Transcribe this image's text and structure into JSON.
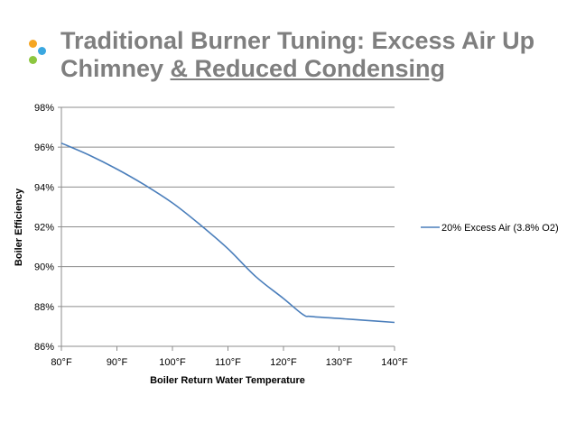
{
  "slide": {
    "title_line1": "Traditional Burner Tuning: Excess Air Up",
    "title_line2_plain": "Chimney ",
    "title_line2_underlined": "& Reduced Condensing",
    "title_color": "#7f7f7f",
    "logo_colors": {
      "orange": "#f5a623",
      "blue": "#3aa7e0",
      "green": "#8cc63f"
    }
  },
  "chart_data": {
    "type": "line",
    "title": "",
    "xlabel": "Boiler Return Water Temperature",
    "ylabel": "Boiler Efficiency",
    "xlim": [
      80,
      140
    ],
    "ylim": [
      86,
      98
    ],
    "x_ticks": [
      80,
      90,
      100,
      110,
      120,
      130,
      140
    ],
    "x_tick_labels": [
      "80°F",
      "90°F",
      "100°F",
      "110°F",
      "120°F",
      "130°F",
      "140°F"
    ],
    "y_ticks": [
      86,
      88,
      90,
      92,
      94,
      96,
      98
    ],
    "y_tick_labels": [
      "86%",
      "88%",
      "90%",
      "92%",
      "94%",
      "96%",
      "98%"
    ],
    "grid": "horizontal",
    "legend_position": "right",
    "series": [
      {
        "name": "20% Excess Air (3.8% O2)",
        "color": "#4a7ebb",
        "x": [
          80,
          85,
          90,
          95,
          100,
          105,
          110,
          115,
          120,
          123.5,
          125,
          130,
          135,
          140
        ],
        "y": [
          96.2,
          95.6,
          94.9,
          94.1,
          93.2,
          92.1,
          90.9,
          89.5,
          88.4,
          87.6,
          87.5,
          87.4,
          87.3,
          87.2
        ]
      }
    ]
  }
}
